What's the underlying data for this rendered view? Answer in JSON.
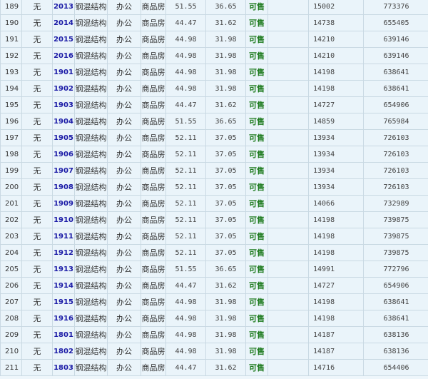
{
  "colors": {
    "background": "#eaf4fa",
    "border": "#c9d9e3",
    "room_link": "#1a1aa6",
    "status": "#1d7a1d"
  },
  "rows": [
    {
      "no": "189",
      "floor": "无",
      "room": "2013",
      "structure": "钢混结构",
      "use": "办公",
      "type": "商品房",
      "build_area": "51.55",
      "inner_area": "36.65",
      "status": "可售",
      "extra": "",
      "unit_price": "15002",
      "total_price": "773376"
    },
    {
      "no": "190",
      "floor": "无",
      "room": "2014",
      "structure": "钢混结构",
      "use": "办公",
      "type": "商品房",
      "build_area": "44.47",
      "inner_area": "31.62",
      "status": "可售",
      "extra": "",
      "unit_price": "14738",
      "total_price": "655405"
    },
    {
      "no": "191",
      "floor": "无",
      "room": "2015",
      "structure": "钢混结构",
      "use": "办公",
      "type": "商品房",
      "build_area": "44.98",
      "inner_area": "31.98",
      "status": "可售",
      "extra": "",
      "unit_price": "14210",
      "total_price": "639146"
    },
    {
      "no": "192",
      "floor": "无",
      "room": "2016",
      "structure": "钢混结构",
      "use": "办公",
      "type": "商品房",
      "build_area": "44.98",
      "inner_area": "31.98",
      "status": "可售",
      "extra": "",
      "unit_price": "14210",
      "total_price": "639146"
    },
    {
      "no": "193",
      "floor": "无",
      "room": "1901",
      "structure": "钢混结构",
      "use": "办公",
      "type": "商品房",
      "build_area": "44.98",
      "inner_area": "31.98",
      "status": "可售",
      "extra": "",
      "unit_price": "14198",
      "total_price": "638641"
    },
    {
      "no": "194",
      "floor": "无",
      "room": "1902",
      "structure": "钢混结构",
      "use": "办公",
      "type": "商品房",
      "build_area": "44.98",
      "inner_area": "31.98",
      "status": "可售",
      "extra": "",
      "unit_price": "14198",
      "total_price": "638641"
    },
    {
      "no": "195",
      "floor": "无",
      "room": "1903",
      "structure": "钢混结构",
      "use": "办公",
      "type": "商品房",
      "build_area": "44.47",
      "inner_area": "31.62",
      "status": "可售",
      "extra": "",
      "unit_price": "14727",
      "total_price": "654906"
    },
    {
      "no": "196",
      "floor": "无",
      "room": "1904",
      "structure": "钢混结构",
      "use": "办公",
      "type": "商品房",
      "build_area": "51.55",
      "inner_area": "36.65",
      "status": "可售",
      "extra": "",
      "unit_price": "14859",
      "total_price": "765984"
    },
    {
      "no": "197",
      "floor": "无",
      "room": "1905",
      "structure": "钢混结构",
      "use": "办公",
      "type": "商品房",
      "build_area": "52.11",
      "inner_area": "37.05",
      "status": "可售",
      "extra": "",
      "unit_price": "13934",
      "total_price": "726103"
    },
    {
      "no": "198",
      "floor": "无",
      "room": "1906",
      "structure": "钢混结构",
      "use": "办公",
      "type": "商品房",
      "build_area": "52.11",
      "inner_area": "37.05",
      "status": "可售",
      "extra": "",
      "unit_price": "13934",
      "total_price": "726103"
    },
    {
      "no": "199",
      "floor": "无",
      "room": "1907",
      "structure": "钢混结构",
      "use": "办公",
      "type": "商品房",
      "build_area": "52.11",
      "inner_area": "37.05",
      "status": "可售",
      "extra": "",
      "unit_price": "13934",
      "total_price": "726103"
    },
    {
      "no": "200",
      "floor": "无",
      "room": "1908",
      "structure": "钢混结构",
      "use": "办公",
      "type": "商品房",
      "build_area": "52.11",
      "inner_area": "37.05",
      "status": "可售",
      "extra": "",
      "unit_price": "13934",
      "total_price": "726103"
    },
    {
      "no": "201",
      "floor": "无",
      "room": "1909",
      "structure": "钢混结构",
      "use": "办公",
      "type": "商品房",
      "build_area": "52.11",
      "inner_area": "37.05",
      "status": "可售",
      "extra": "",
      "unit_price": "14066",
      "total_price": "732989"
    },
    {
      "no": "202",
      "floor": "无",
      "room": "1910",
      "structure": "钢混结构",
      "use": "办公",
      "type": "商品房",
      "build_area": "52.11",
      "inner_area": "37.05",
      "status": "可售",
      "extra": "",
      "unit_price": "14198",
      "total_price": "739875"
    },
    {
      "no": "203",
      "floor": "无",
      "room": "1911",
      "structure": "钢混结构",
      "use": "办公",
      "type": "商品房",
      "build_area": "52.11",
      "inner_area": "37.05",
      "status": "可售",
      "extra": "",
      "unit_price": "14198",
      "total_price": "739875"
    },
    {
      "no": "204",
      "floor": "无",
      "room": "1912",
      "structure": "钢混结构",
      "use": "办公",
      "type": "商品房",
      "build_area": "52.11",
      "inner_area": "37.05",
      "status": "可售",
      "extra": "",
      "unit_price": "14198",
      "total_price": "739875"
    },
    {
      "no": "205",
      "floor": "无",
      "room": "1913",
      "structure": "钢混结构",
      "use": "办公",
      "type": "商品房",
      "build_area": "51.55",
      "inner_area": "36.65",
      "status": "可售",
      "extra": "",
      "unit_price": "14991",
      "total_price": "772796"
    },
    {
      "no": "206",
      "floor": "无",
      "room": "1914",
      "structure": "钢混结构",
      "use": "办公",
      "type": "商品房",
      "build_area": "44.47",
      "inner_area": "31.62",
      "status": "可售",
      "extra": "",
      "unit_price": "14727",
      "total_price": "654906"
    },
    {
      "no": "207",
      "floor": "无",
      "room": "1915",
      "structure": "钢混结构",
      "use": "办公",
      "type": "商品房",
      "build_area": "44.98",
      "inner_area": "31.98",
      "status": "可售",
      "extra": "",
      "unit_price": "14198",
      "total_price": "638641"
    },
    {
      "no": "208",
      "floor": "无",
      "room": "1916",
      "structure": "钢混结构",
      "use": "办公",
      "type": "商品房",
      "build_area": "44.98",
      "inner_area": "31.98",
      "status": "可售",
      "extra": "",
      "unit_price": "14198",
      "total_price": "638641"
    },
    {
      "no": "209",
      "floor": "无",
      "room": "1801",
      "structure": "钢混结构",
      "use": "办公",
      "type": "商品房",
      "build_area": "44.98",
      "inner_area": "31.98",
      "status": "可售",
      "extra": "",
      "unit_price": "14187",
      "total_price": "638136"
    },
    {
      "no": "210",
      "floor": "无",
      "room": "1802",
      "structure": "钢混结构",
      "use": "办公",
      "type": "商品房",
      "build_area": "44.98",
      "inner_area": "31.98",
      "status": "可售",
      "extra": "",
      "unit_price": "14187",
      "total_price": "638136"
    },
    {
      "no": "211",
      "floor": "无",
      "room": "1803",
      "structure": "钢混结构",
      "use": "办公",
      "type": "商品房",
      "build_area": "44.47",
      "inner_area": "31.62",
      "status": "可售",
      "extra": "",
      "unit_price": "14716",
      "total_price": "654406"
    }
  ]
}
